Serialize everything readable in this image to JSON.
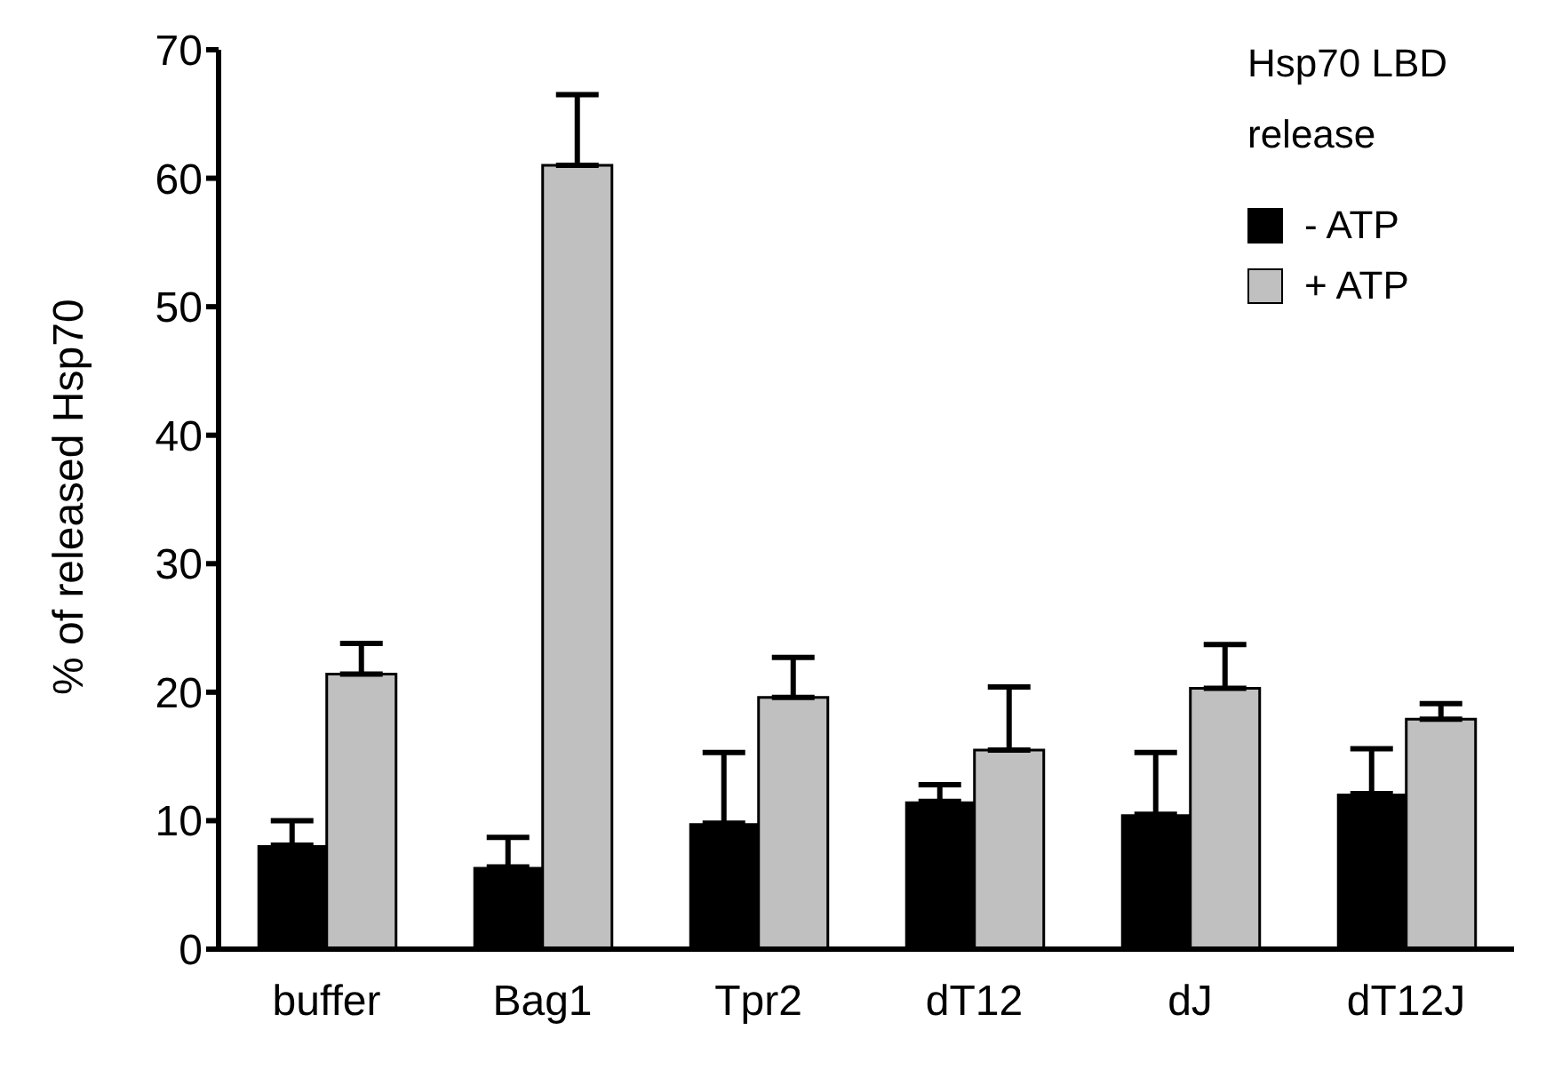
{
  "chart_data": {
    "type": "bar",
    "ylabel": "% of released Hsp70",
    "legend_title": "Hsp70 LBD release",
    "legend": "top right",
    "categories": [
      "buffer",
      "Bag1",
      "Tpr2",
      "dT12",
      "dJ",
      "dT12J"
    ],
    "series": [
      {
        "name": "- ATP",
        "color": "#000000",
        "values": [
          8.1,
          6.4,
          9.8,
          11.5,
          10.5,
          12.1
        ],
        "errors": [
          [
            8.1,
            10.0
          ],
          [
            6.4,
            8.7
          ],
          [
            9.8,
            15.3
          ],
          [
            11.5,
            12.8
          ],
          [
            10.5,
            15.3
          ],
          [
            12.1,
            15.6
          ]
        ]
      },
      {
        "name": "+ ATP",
        "color": "#c0c0c0",
        "values": [
          21.4,
          61.0,
          19.6,
          15.5,
          20.3,
          17.9
        ],
        "errors": [
          [
            21.4,
            23.8
          ],
          [
            61.0,
            66.5
          ],
          [
            19.6,
            22.7
          ],
          [
            15.5,
            20.4
          ],
          [
            20.3,
            23.7
          ],
          [
            17.9,
            19.1
          ]
        ]
      }
    ],
    "ylim": [
      0,
      70
    ],
    "yticks": [
      0,
      10,
      20,
      30,
      40,
      50,
      60,
      70
    ],
    "grid": false
  }
}
